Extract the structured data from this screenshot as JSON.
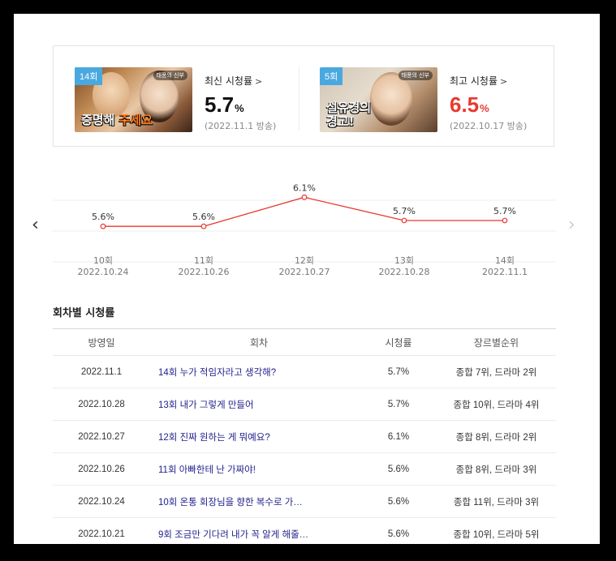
{
  "summary": {
    "latest": {
      "badge": "14회",
      "thumb_logo": "태풍의 신부",
      "caption_white": "증명해 ",
      "caption_orange": "주세요",
      "label": "최신 시청률",
      "value": "5.7",
      "unit": "%",
      "date": "(2022.11.1 방송)"
    },
    "highest": {
      "badge": "5회",
      "thumb_logo": "태풍의 신부",
      "caption_line1": "설유경의",
      "caption_line2": "경고!",
      "label": "최고 시청률",
      "value": "6.5",
      "unit": "%",
      "date": "(2022.10.17 방송)",
      "value_color": "#e8392f"
    }
  },
  "chart_data": {
    "type": "line",
    "categories": [
      "10회",
      "11회",
      "12회",
      "13회",
      "14회"
    ],
    "dates": [
      "2022.10.24",
      "2022.10.26",
      "2022.10.27",
      "2022.10.28",
      "2022.11.1"
    ],
    "values": [
      5.6,
      5.6,
      6.1,
      5.7,
      5.7
    ],
    "value_labels": [
      "5.6%",
      "5.6%",
      "6.1%",
      "5.7%",
      "5.7%"
    ],
    "ylim": [
      5.1,
      6.3
    ],
    "line_color": "#e8392f",
    "grid": true
  },
  "table": {
    "title": "회차별 시청률",
    "headers": [
      "방영일",
      "회차",
      "시청률",
      "장르별순위"
    ],
    "rows": [
      {
        "date": "2022.11.1",
        "episode": "14회 누가 적임자라고 생각해?",
        "rate": "5.7%",
        "rank": "종합 7위, 드라마 2위"
      },
      {
        "date": "2022.10.28",
        "episode": "13회 내가 그렇게 만들어",
        "rate": "5.7%",
        "rank": "종합 10위, 드라마 4위"
      },
      {
        "date": "2022.10.27",
        "episode": "12회 진짜 원하는 게 뭐예요?",
        "rate": "6.1%",
        "rank": "종합 8위, 드라마 2위"
      },
      {
        "date": "2022.10.26",
        "episode": "11회 아빠한테 난 가짜야!",
        "rate": "5.6%",
        "rank": "종합 8위, 드라마 3위"
      },
      {
        "date": "2022.10.24",
        "episode": "10회 온통 회장님을 향한 복수로 가…",
        "rate": "5.6%",
        "rank": "종합 11위, 드라마 3위"
      },
      {
        "date": "2022.10.21",
        "episode": "9회 조금만 기다려 내가 꼭 알게 해줄…",
        "rate": "5.6%",
        "rank": "종합 10위, 드라마 5위"
      }
    ]
  },
  "icons": {
    "prev": "chevron-left-icon",
    "next": "chevron-right-icon"
  }
}
